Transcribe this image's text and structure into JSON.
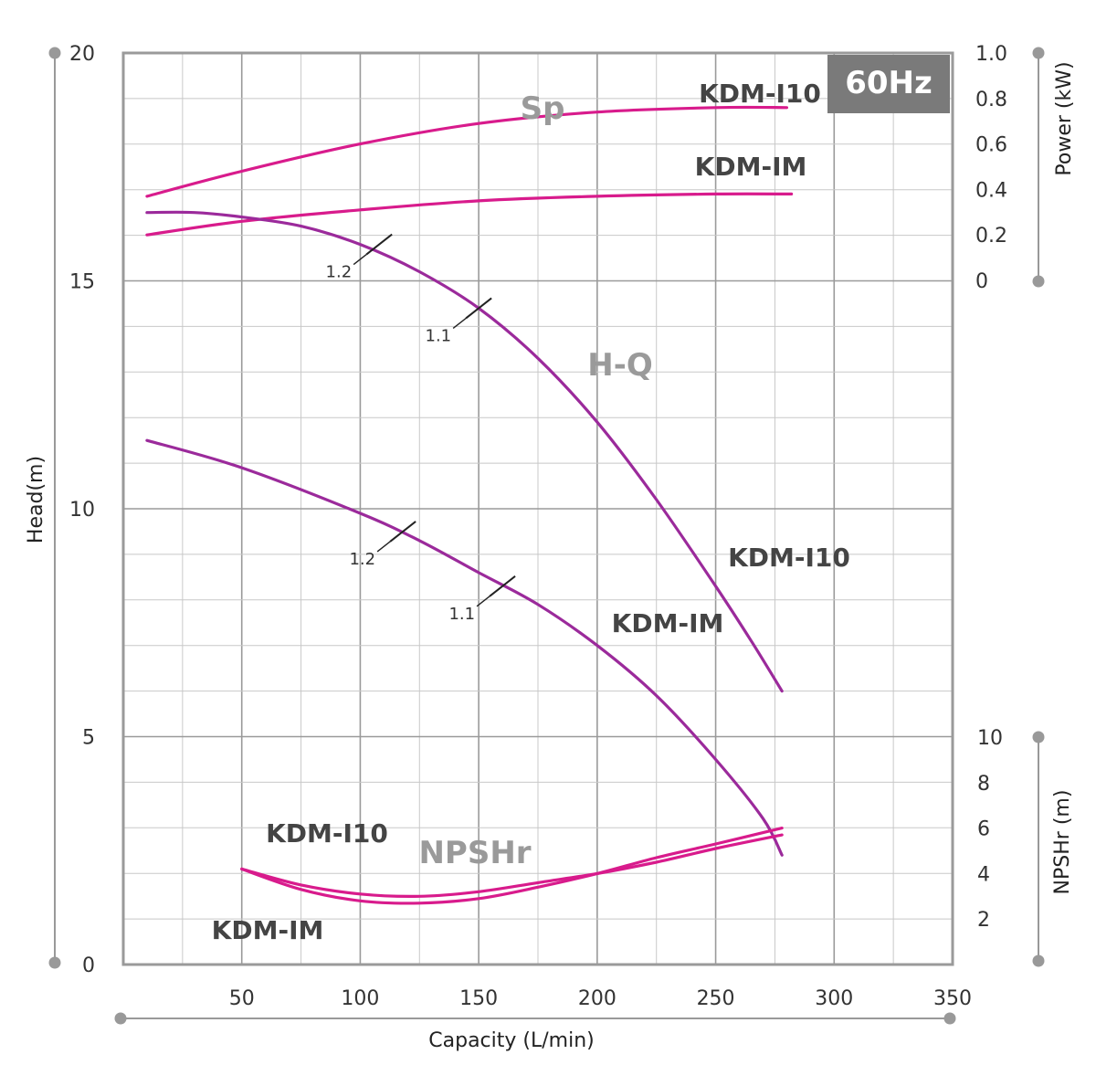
{
  "chart_data": {
    "type": "line",
    "badge": "60Hz",
    "x_axis": {
      "label": "Capacity (L/min)",
      "range": [
        0,
        350
      ],
      "ticks": [
        "50",
        "100",
        "150",
        "200",
        "250",
        "300",
        "350"
      ]
    },
    "y_axis_head": {
      "label": "Head(m)",
      "range": [
        0,
        20
      ],
      "ticks": [
        "0",
        "5",
        "10",
        "15",
        "20"
      ]
    },
    "y_axis_power": {
      "label": "Power (kW)",
      "range": [
        0,
        1.0
      ],
      "ticks": [
        "0",
        "0.2",
        "0.4",
        "0.6",
        "0.8",
        "1.0"
      ]
    },
    "y_axis_npshr": {
      "label": "NPSHr (m)",
      "range": [
        0,
        10
      ],
      "ticks": [
        "2",
        "4",
        "6",
        "8",
        "10"
      ]
    },
    "group_labels": {
      "sp": "Sp",
      "hq": "H-Q",
      "npshr": "NPSHr"
    },
    "colors": {
      "power": "#d81b8c",
      "head": "#9b2a9b",
      "npshr": "#d81b8c",
      "badge_bg": "#7a7a7a",
      "grid": "#c8c8c8"
    },
    "series": [
      {
        "group": "power",
        "name": "KDM-I10",
        "axis": "power",
        "x": [
          10,
          50,
          100,
          150,
          200,
          250,
          280
        ],
        "values": [
          0.37,
          0.48,
          0.6,
          0.69,
          0.74,
          0.76,
          0.76
        ]
      },
      {
        "group": "power",
        "name": "KDM-IM",
        "axis": "power",
        "x": [
          10,
          50,
          100,
          150,
          200,
          250,
          282
        ],
        "values": [
          0.2,
          0.26,
          0.31,
          0.35,
          0.37,
          0.38,
          0.38
        ]
      },
      {
        "group": "head",
        "name": "KDM-I10",
        "axis": "head",
        "x": [
          10,
          30,
          50,
          75,
          100,
          125,
          150,
          175,
          200,
          225,
          250,
          265,
          278
        ],
        "values": [
          16.5,
          16.5,
          16.4,
          16.2,
          15.8,
          15.2,
          14.4,
          13.3,
          11.9,
          10.2,
          8.3,
          7.1,
          6.0
        ]
      },
      {
        "group": "head",
        "name": "KDM-IM",
        "axis": "head",
        "x": [
          10,
          50,
          100,
          125,
          150,
          175,
          200,
          225,
          250,
          270,
          278
        ],
        "values": [
          11.5,
          10.9,
          9.9,
          9.3,
          8.6,
          7.9,
          7.0,
          5.9,
          4.5,
          3.2,
          2.4
        ]
      },
      {
        "group": "npshr",
        "name": "KDM-I10",
        "axis": "npshr",
        "x": [
          50,
          75,
          100,
          125,
          150,
          175,
          200,
          225,
          250,
          278
        ],
        "values": [
          4.2,
          3.5,
          3.1,
          3.0,
          3.2,
          3.6,
          4.0,
          4.5,
          5.1,
          5.7
        ]
      },
      {
        "group": "npshr",
        "name": "KDM-IM",
        "axis": "npshr",
        "x": [
          50,
          75,
          100,
          125,
          150,
          175,
          200,
          225,
          250,
          278
        ],
        "values": [
          4.2,
          3.3,
          2.8,
          2.7,
          2.9,
          3.4,
          4.0,
          4.7,
          5.3,
          6.0
        ]
      }
    ],
    "efficiency_marks": [
      {
        "curve": "KDM-I10",
        "label": "1.2",
        "x": 108,
        "head": 15.8
      },
      {
        "curve": "KDM-I10",
        "label": "1.1",
        "x": 150,
        "head": 14.4
      },
      {
        "curve": "KDM-IM",
        "label": "1.2",
        "x": 118,
        "head": 9.5
      },
      {
        "curve": "KDM-IM",
        "label": "1.1",
        "x": 160,
        "head": 8.3
      }
    ],
    "grid": true
  }
}
